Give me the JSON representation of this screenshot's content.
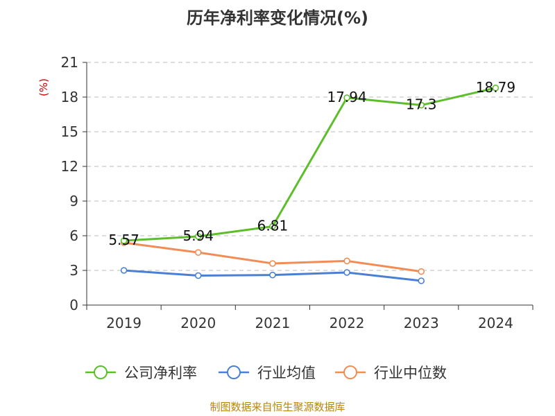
{
  "chart_data": {
    "type": "line",
    "title": "历年净利率变化情况(%)",
    "ylabel": "(%)",
    "categories": [
      "2019",
      "2020",
      "2021",
      "2022",
      "2023",
      "2024"
    ],
    "ylim": [
      0,
      21
    ],
    "yticks": [
      0,
      3,
      6,
      9,
      12,
      15,
      18,
      21
    ],
    "grid": true,
    "legend_position": "bottom",
    "series": [
      {
        "name": "公司净利率",
        "color": "#5cbf2a",
        "values": [
          5.57,
          5.94,
          6.81,
          17.94,
          17.3,
          18.79
        ],
        "labels": [
          "5.57",
          "5.94",
          "6.81",
          "17.94",
          "17.3",
          "18.79"
        ]
      },
      {
        "name": "行业均值",
        "color": "#4a7fd4",
        "values": [
          3.0,
          2.55,
          2.6,
          2.82,
          2.1,
          null
        ]
      },
      {
        "name": "行业中位数",
        "color": "#f28c55",
        "values": [
          5.4,
          4.55,
          3.6,
          3.82,
          2.9,
          null
        ]
      }
    ],
    "source": "制图数据来自恒生聚源数据库"
  }
}
